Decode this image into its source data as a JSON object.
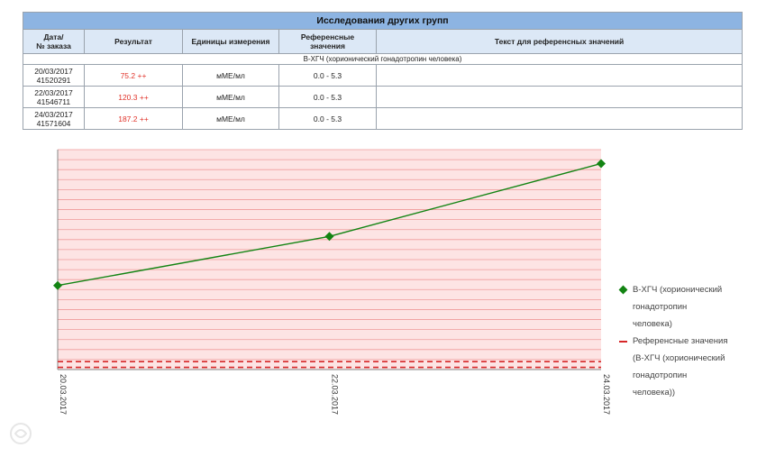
{
  "table": {
    "title": "Исследования других групп",
    "headers": [
      "Дата/\n№ заказа",
      "Результат",
      "Единицы измерения",
      "Референсные значения",
      "Текст для референсных значений"
    ],
    "header_date_line1": "Дата/",
    "header_date_line2": "№ заказа",
    "header_result": "Результат",
    "header_units": "Единицы измерения",
    "header_ref_line1": "Референсные",
    "header_ref_line2": "значения",
    "header_ref_text": "Текст для референсных значений",
    "group_label": "B-ХГЧ (хорионический гонадотропин человека)",
    "rows": [
      {
        "date": "20/03/2017",
        "order": "41520291",
        "result": "75.2 ++",
        "units": "мМЕ/мл",
        "reference": "0.0 - 5.3",
        "ref_text": ""
      },
      {
        "date": "22/03/2017",
        "order": "41546711",
        "result": "120.3 ++",
        "units": "мМЕ/мл",
        "reference": "0.0 - 5.3",
        "ref_text": ""
      },
      {
        "date": "24/03/2017",
        "order": "41571604",
        "result": "187.2 ++",
        "units": "мМЕ/мл",
        "reference": "0.0 - 5.3",
        "ref_text": ""
      }
    ]
  },
  "chart_data": {
    "type": "line",
    "x": [
      "20.03.2017",
      "22.03.2017",
      "24.03.2017"
    ],
    "series": [
      {
        "name": "B-ХГЧ (хорионический гонадотропин человека)",
        "values": [
          75.2,
          120.3,
          187.2
        ],
        "color": "#138413",
        "marker": "diamond"
      },
      {
        "name": "Референсные значения (B-ХГЧ (хорионический гонадотропин человека))",
        "lower": 0.0,
        "upper": 5.3,
        "color": "#d62728",
        "style": "dashed"
      }
    ],
    "ylim": [
      -2,
      200
    ],
    "grid": true,
    "background_color": "#fde4e4",
    "legend_position": "right",
    "legend_lines": {
      "series1": [
        "B-ХГЧ (хорионический",
        "гонадотропин",
        "человека)"
      ],
      "series2": [
        "Референсные значения",
        "(B-ХГЧ (хорионический",
        "гонадотропин",
        "человека))"
      ]
    }
  }
}
